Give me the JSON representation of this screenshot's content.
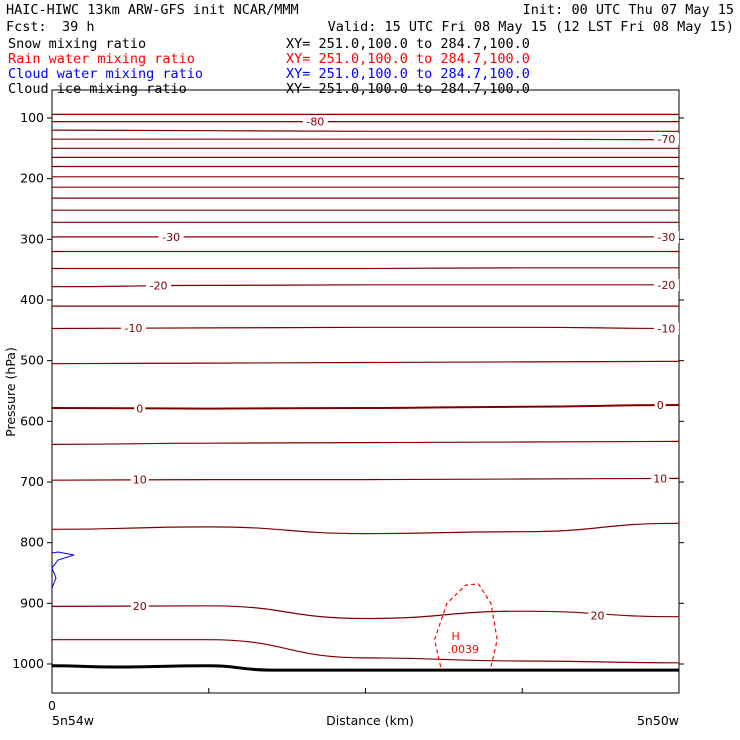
{
  "header": {
    "title_left": "HAIC-HIWC 13km ARW-GFS init   NCAR/MMM",
    "init": "Init: 00 UTC Thu 07 May 15",
    "fcst_label": "Fcst:",
    "fcst_value": "39 h",
    "valid": "Valid: 15 UTC Fri 08 May 15 (12 LST Fri 08 May 15)",
    "fields": [
      {
        "name": "Snow mixing ratio",
        "xy": "XY= 251.0,100.0 to 284.7,100.0",
        "color": "#000000"
      },
      {
        "name": "Rain water mixing ratio",
        "xy": "XY= 251.0,100.0 to 284.7,100.0",
        "color": "#ff0000"
      },
      {
        "name": "Cloud water mixing ratio",
        "xy": "XY= 251.0,100.0 to 284.7,100.0",
        "color": "#0000ff"
      },
      {
        "name": "Cloud ice mixing ratio",
        "xy": "XY= 251.0,100.0 to 284.7,100.0",
        "color": "#000000"
      }
    ]
  },
  "chart_data": {
    "type": "line",
    "title": "",
    "xlabel": "Distance (km)",
    "ylabel": "Pressure (hPa)",
    "x_start_label": "0",
    "x_left_label": "5n54w",
    "x_right_label": "5n50w",
    "y_ticks": [
      100,
      200,
      300,
      400,
      500,
      600,
      700,
      800,
      900,
      1000
    ],
    "colors": {
      "temperature": "#800000",
      "rain": "#ff0000",
      "wind": "#0000ff",
      "terrain": "#000000"
    },
    "temperature_contours": [
      {
        "p": [
          94,
          94,
          94,
          94,
          94
        ]
      },
      {
        "p": [
          106,
          106,
          106,
          106,
          106
        ],
        "label": "-80"
      },
      {
        "p": [
          120,
          121,
          122,
          122,
          122
        ]
      },
      {
        "p": [
          135,
          135,
          135,
          135,
          136
        ],
        "label": "-70"
      },
      {
        "p": [
          150,
          150,
          150,
          150,
          150
        ]
      },
      {
        "p": [
          165,
          165,
          165,
          165,
          165
        ]
      },
      {
        "p": [
          180,
          180,
          180,
          180,
          180
        ]
      },
      {
        "p": [
          197,
          197,
          197,
          197,
          197
        ]
      },
      {
        "p": [
          214,
          214,
          214,
          214,
          214
        ]
      },
      {
        "p": [
          232,
          232,
          232,
          232,
          232
        ]
      },
      {
        "p": [
          252,
          252,
          252,
          252,
          252
        ]
      },
      {
        "p": [
          272,
          272,
          272,
          272,
          272
        ]
      },
      {
        "p": [
          296,
          296,
          296,
          296,
          296
        ],
        "label": "-30"
      },
      {
        "p": [
          320,
          320,
          320,
          320,
          320
        ]
      },
      {
        "p": [
          348,
          348,
          348,
          347,
          347
        ]
      },
      {
        "p": [
          378,
          376,
          375,
          375,
          375
        ],
        "label": "-20"
      },
      {
        "p": [
          410,
          410,
          410,
          410,
          410
        ]
      },
      {
        "p": [
          447,
          446,
          445,
          445,
          447
        ],
        "label": "-10"
      },
      {
        "p": [
          505,
          504,
          503,
          502,
          501
        ]
      },
      {
        "p": [
          578,
          579,
          578,
          576,
          573
        ],
        "label": "0"
      },
      {
        "p": [
          638,
          636,
          635,
          634,
          633
        ]
      },
      {
        "p": [
          697,
          696,
          696,
          695,
          694
        ],
        "label": "10"
      },
      {
        "p": [
          778,
          774,
          785,
          782,
          768
        ]
      },
      {
        "p": [
          905,
          904,
          925,
          913,
          922
        ],
        "label": "20"
      },
      {
        "p": [
          960,
          960,
          990,
          995,
          998
        ]
      }
    ],
    "contour_labels": [
      {
        "text": "-80",
        "x": 0.42,
        "p": 106
      },
      {
        "text": "-70",
        "x": 0.98,
        "p": 135
      },
      {
        "text": "-30",
        "x": 0.19,
        "p": 296
      },
      {
        "text": "-30",
        "x": 0.98,
        "p": 296
      },
      {
        "text": "-20",
        "x": 0.17,
        "p": 376
      },
      {
        "text": "-20",
        "x": 0.98,
        "p": 375
      },
      {
        "text": "-10",
        "x": 0.13,
        "p": 446
      },
      {
        "text": "-10",
        "x": 0.98,
        "p": 447
      },
      {
        "text": "0",
        "x": 0.14,
        "p": 579
      },
      {
        "text": "0",
        "x": 0.97,
        "p": 573
      },
      {
        "text": "10",
        "x": 0.14,
        "p": 696
      },
      {
        "text": "10",
        "x": 0.97,
        "p": 694
      },
      {
        "text": "20",
        "x": 0.14,
        "p": 904
      },
      {
        "text": "20",
        "x": 0.87,
        "p": 920
      }
    ],
    "rain_contour": {
      "points": [
        [
          0.62,
          1005
        ],
        [
          0.61,
          960
        ],
        [
          0.63,
          900
        ],
        [
          0.66,
          870
        ],
        [
          0.68,
          868
        ],
        [
          0.7,
          900
        ],
        [
          0.71,
          960
        ],
        [
          0.7,
          1005
        ]
      ],
      "max_label": "H",
      "max_value": ".0039",
      "max_x": 0.65,
      "max_p": 980
    },
    "terrain": {
      "x": [
        0,
        0.1,
        0.25,
        0.35,
        0.5,
        1.0
      ],
      "p": [
        1003,
        1005,
        1003,
        1010,
        1010,
        1010
      ]
    }
  }
}
